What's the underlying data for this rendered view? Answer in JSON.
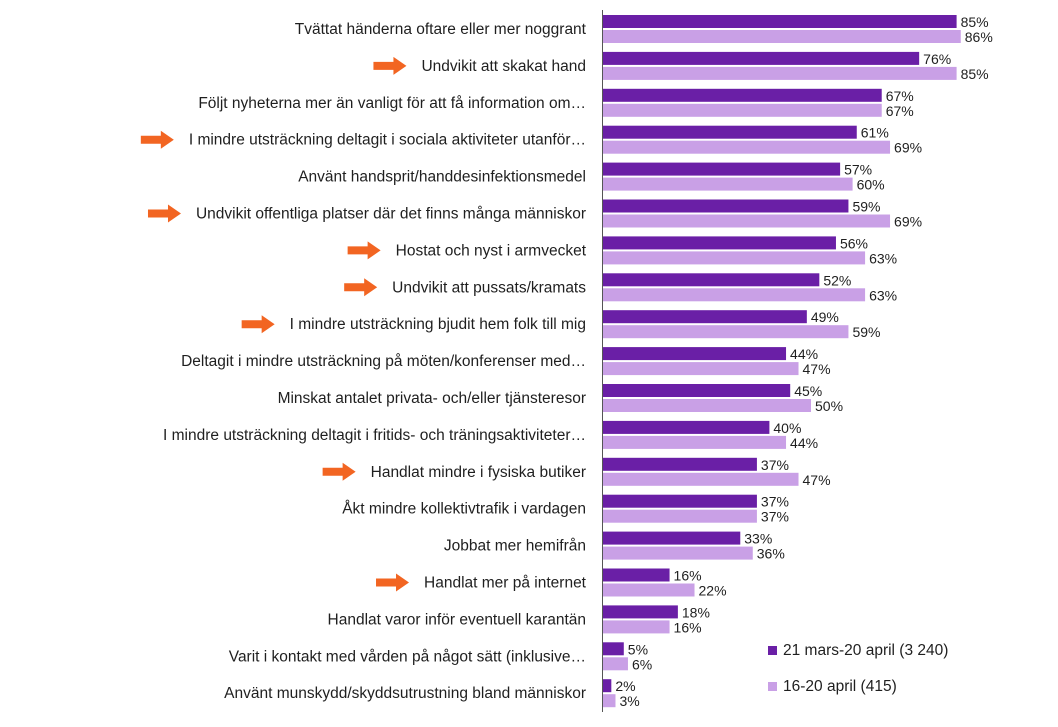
{
  "colors": {
    "series1": "#6a1fa6",
    "series2": "#c9a0e6",
    "arrow": "#f26522",
    "axis": "#555555"
  },
  "chart_data": {
    "type": "bar",
    "orientation": "horizontal",
    "unit": "%",
    "xlim": [
      0,
      100
    ],
    "categories": [
      "Tvättat händerna oftare eller mer noggrant",
      "Undvikit att skakat hand",
      "Följt nyheterna mer än vanligt för att få information om…",
      "I mindre utsträckning deltagit i sociala aktiviteter utanför…",
      "Använt handsprit/handdesinfektionsmedel",
      "Undvikit offentliga platser där det finns många människor",
      "Hostat och nyst i armvecket",
      "Undvikit att pussats/kramats",
      "I mindre utsträckning bjudit hem folk till mig",
      "Deltagit i mindre utsträckning på möten/konferenser med…",
      "Minskat antalet privata- och/eller tjänsteresor",
      "I mindre utsträckning deltagit i fritids- och träningsaktiviteter…",
      "Handlat mindre i fysiska butiker",
      "Åkt mindre kollektivtrafik i vardagen",
      "Jobbat mer hemifrån",
      "Handlat mer på internet",
      "Handlat varor inför eventuell karantän",
      "Varit i kontakt med vården på något sätt (inklusive…",
      "Använt munskydd/skyddsutrustning bland människor"
    ],
    "arrows": [
      false,
      true,
      false,
      true,
      false,
      true,
      true,
      true,
      true,
      false,
      false,
      false,
      true,
      false,
      false,
      true,
      false,
      false,
      false
    ],
    "series": [
      {
        "name": "21 mars-20 april (3 240)",
        "values": [
          85,
          76,
          67,
          61,
          57,
          59,
          56,
          52,
          49,
          44,
          45,
          40,
          37,
          37,
          33,
          16,
          18,
          5,
          2
        ]
      },
      {
        "name": "16-20 april (415)",
        "values": [
          86,
          85,
          67,
          69,
          60,
          69,
          63,
          63,
          59,
          47,
          50,
          44,
          47,
          37,
          36,
          22,
          16,
          6,
          3
        ]
      }
    ]
  }
}
